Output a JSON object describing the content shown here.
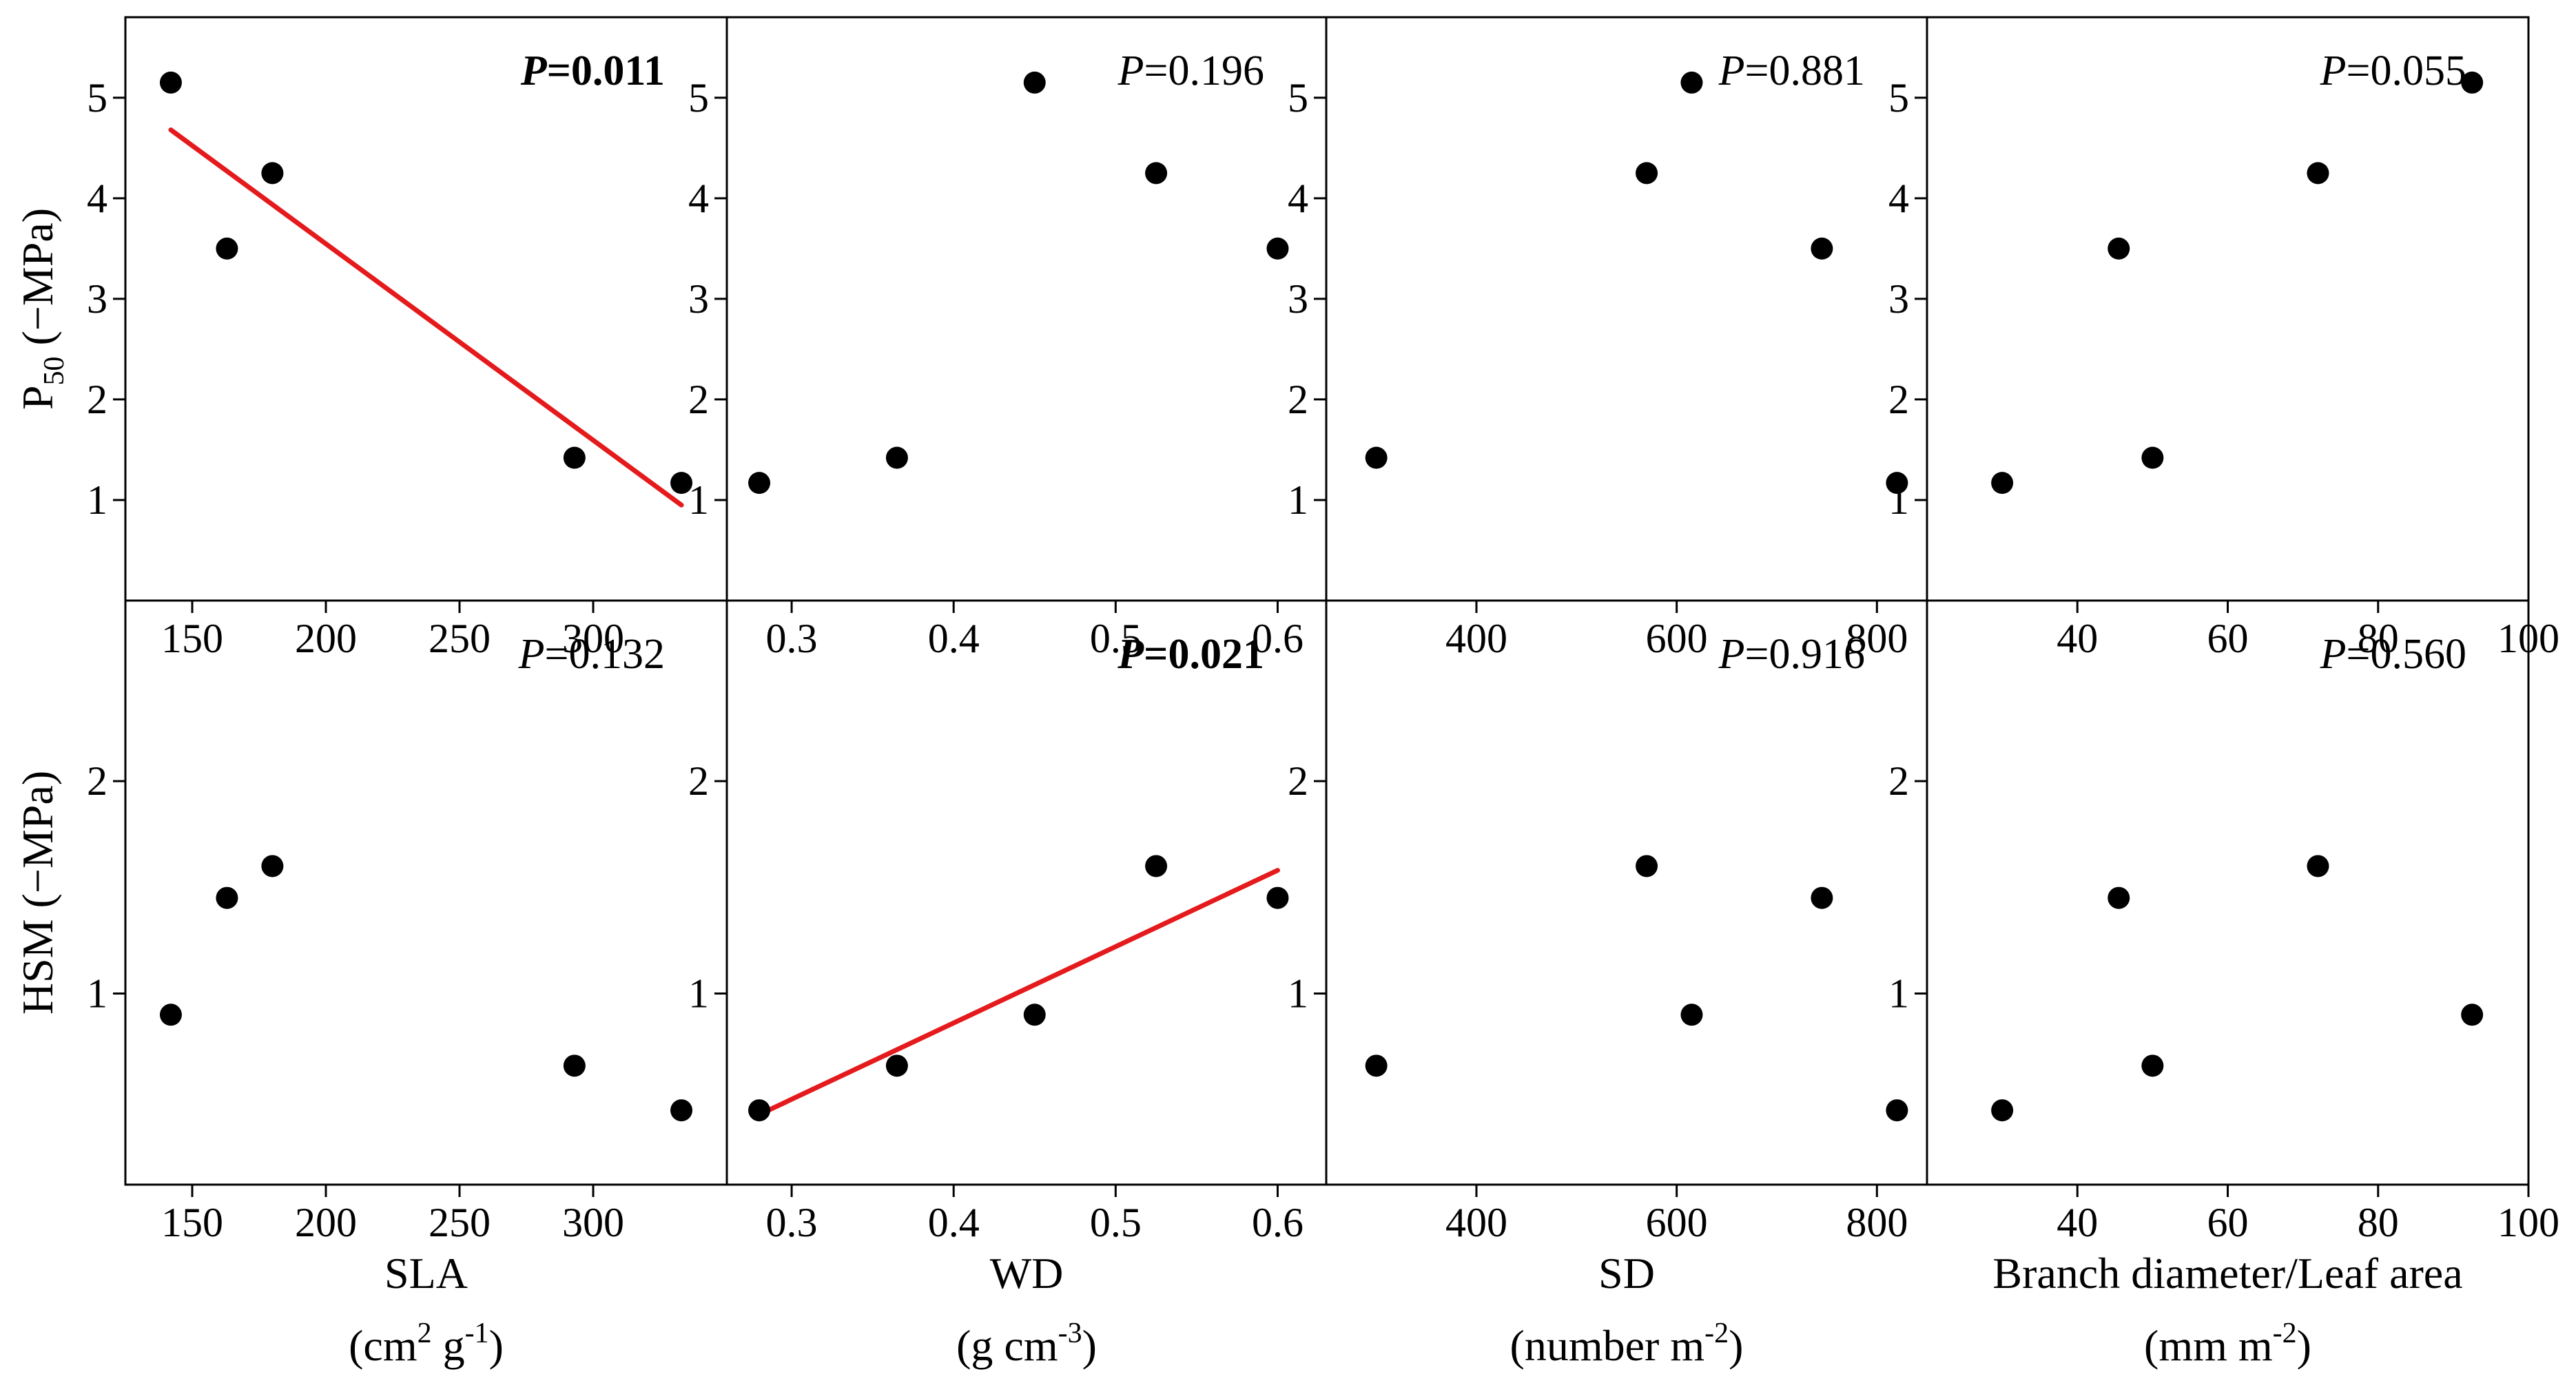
{
  "figure": {
    "colors": {
      "point": "#000000",
      "fit_line": "#e41a1c",
      "significant_text": "#e41a1c",
      "axis": "#000000"
    }
  },
  "chart_data": [
    {
      "type": "scatter",
      "id": "p50-vs-sla",
      "row": 0,
      "col": 0,
      "xlim": [
        125,
        350
      ],
      "ylim": [
        0,
        5.8
      ],
      "x": [
        142,
        163,
        180,
        293,
        333
      ],
      "y": [
        5.15,
        3.5,
        4.25,
        1.42,
        1.17
      ],
      "x_ticks": [
        150,
        200,
        250,
        300
      ],
      "y_ticks": [
        1,
        2,
        3,
        4,
        5
      ],
      "fit": {
        "x": [
          142,
          333
        ],
        "y": [
          4.68,
          0.95
        ]
      },
      "p_label": "P",
      "p_value": "=0.011",
      "significant": true,
      "ylabel_main": "P",
      "ylabel_sub": "50",
      "ylabel_unit": " (−MPa)"
    },
    {
      "type": "scatter",
      "id": "p50-vs-wd",
      "row": 0,
      "col": 1,
      "xlim": [
        0.26,
        0.63
      ],
      "ylim": [
        0,
        5.8
      ],
      "x": [
        0.28,
        0.365,
        0.45,
        0.525,
        0.6
      ],
      "y": [
        1.17,
        1.42,
        5.15,
        4.25,
        3.5
      ],
      "x_ticks": [
        0.3,
        0.4,
        0.5,
        0.6
      ],
      "y_ticks": [
        1,
        2,
        3,
        4,
        5
      ],
      "p_label": "P",
      "p_value": "=0.196",
      "significant": false
    },
    {
      "type": "scatter",
      "id": "p50-vs-sd",
      "row": 0,
      "col": 2,
      "xlim": [
        250,
        850
      ],
      "ylim": [
        0,
        5.8
      ],
      "x": [
        300,
        570,
        615,
        745,
        820
      ],
      "y": [
        1.42,
        4.25,
        5.15,
        3.5,
        1.17
      ],
      "x_ticks": [
        400,
        600,
        800
      ],
      "y_ticks": [
        1,
        2,
        3,
        4,
        5
      ],
      "p_label": "P",
      "p_value": "=0.881",
      "significant": false
    },
    {
      "type": "scatter",
      "id": "p50-vs-branch-leaf",
      "row": 0,
      "col": 3,
      "xlim": [
        20,
        100
      ],
      "ylim": [
        0,
        5.8
      ],
      "x": [
        30,
        45.5,
        50,
        72,
        92.5
      ],
      "y": [
        1.17,
        3.5,
        1.42,
        4.25,
        5.15
      ],
      "x_ticks": [
        40,
        60,
        80,
        100
      ],
      "y_ticks": [
        1,
        2,
        3,
        4,
        5
      ],
      "p_label": "P",
      "p_value": "=0.055",
      "significant": false
    },
    {
      "type": "scatter",
      "id": "hsm-vs-sla",
      "row": 1,
      "col": 0,
      "xlim": [
        125,
        350
      ],
      "ylim": [
        0.1,
        2.85
      ],
      "x": [
        142,
        163,
        180,
        293,
        333
      ],
      "y": [
        0.9,
        1.45,
        1.6,
        0.66,
        0.45
      ],
      "x_ticks": [
        150,
        200,
        250,
        300
      ],
      "y_ticks": [
        1,
        2
      ],
      "p_label": "P",
      "p_value": "=0.132",
      "significant": false,
      "xlabel": "SLA",
      "unit_pre": "(cm",
      "unit_sup1": "2",
      "unit_mid": " g",
      "unit_sup2": "-1",
      "unit_post": ")",
      "ylabel": "HSM (−MPa)"
    },
    {
      "type": "scatter",
      "id": "hsm-vs-wd",
      "row": 1,
      "col": 1,
      "xlim": [
        0.26,
        0.63
      ],
      "ylim": [
        0.1,
        2.85
      ],
      "x": [
        0.28,
        0.365,
        0.45,
        0.525,
        0.6
      ],
      "y": [
        0.45,
        0.66,
        0.9,
        1.6,
        1.45
      ],
      "x_ticks": [
        0.3,
        0.4,
        0.5,
        0.6
      ],
      "y_ticks": [
        1,
        2
      ],
      "fit": {
        "x": [
          0.28,
          0.6
        ],
        "y": [
          0.43,
          1.58
        ]
      },
      "p_label": "P",
      "p_value": "=0.021",
      "significant": true,
      "xlabel": "WD",
      "unit_pre": "(g cm",
      "unit_sup1": "-3",
      "unit_post": ")"
    },
    {
      "type": "scatter",
      "id": "hsm-vs-sd",
      "row": 1,
      "col": 2,
      "xlim": [
        250,
        850
      ],
      "ylim": [
        0.1,
        2.85
      ],
      "x": [
        300,
        570,
        615,
        745,
        820
      ],
      "y": [
        0.66,
        1.6,
        0.9,
        1.45,
        0.45
      ],
      "x_ticks": [
        400,
        600,
        800
      ],
      "y_ticks": [
        1,
        2
      ],
      "p_label": "P",
      "p_value": "=0.916",
      "significant": false,
      "xlabel": "SD",
      "unit_pre": "(number m",
      "unit_sup1": "-2",
      "unit_post": ")"
    },
    {
      "type": "scatter",
      "id": "hsm-vs-branch-leaf",
      "row": 1,
      "col": 3,
      "xlim": [
        20,
        100
      ],
      "ylim": [
        0.1,
        2.85
      ],
      "x": [
        30,
        45.5,
        50,
        72,
        92.5
      ],
      "y": [
        0.45,
        1.45,
        0.66,
        1.6,
        0.9
      ],
      "x_ticks": [
        40,
        60,
        80,
        100
      ],
      "y_ticks": [
        1,
        2
      ],
      "p_label": "P",
      "p_value": "=0.560",
      "significant": false,
      "xlabel": "Branch diameter/Leaf area",
      "unit_pre": "(mm m",
      "unit_sup1": "-2",
      "unit_post": ")"
    }
  ]
}
